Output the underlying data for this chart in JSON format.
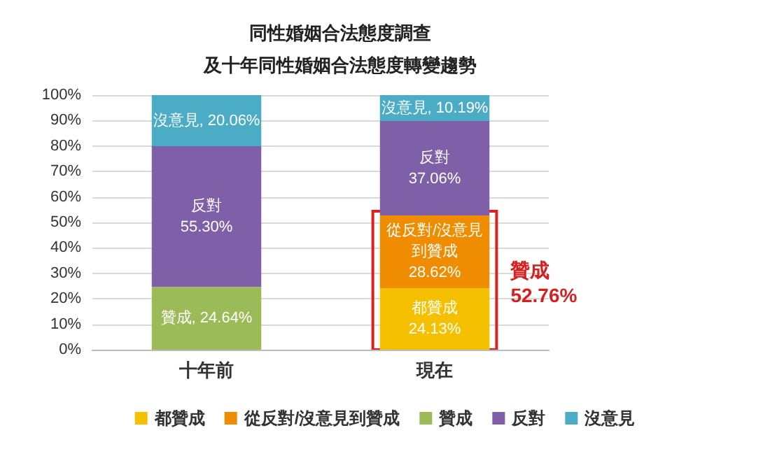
{
  "chart_data": {
    "type": "bar",
    "stacked": true,
    "title": "同性婚姻合法態度調查",
    "subtitle": "及十年同性婚姻合法態度轉變趨勢",
    "categories": [
      "十年前",
      "現在"
    ],
    "series": [
      {
        "name": "都贊成",
        "color": "#f5c000",
        "values": [
          null,
          24.13
        ],
        "value_labels": [
          null,
          "都贊成\n24.13%"
        ]
      },
      {
        "name": "從反對/沒意見到贊成",
        "color": "#f08c00",
        "values": [
          null,
          28.62
        ],
        "value_labels": [
          null,
          "從反對/沒意見到贊成\n28.62%"
        ]
      },
      {
        "name": "贊成",
        "color": "#9bbb59",
        "values": [
          24.64,
          null
        ],
        "value_labels": [
          "贊成, 24.64%",
          null
        ]
      },
      {
        "name": "反對",
        "color": "#7e5fa8",
        "values": [
          55.3,
          37.06
        ],
        "value_labels": [
          "反對\n55.30%",
          "反對\n37.06%"
        ]
      },
      {
        "name": "沒意見",
        "color": "#4bacc6",
        "values": [
          20.06,
          10.19
        ],
        "value_labels": [
          "沒意見, 20.06%",
          "沒意見, 10.19%"
        ]
      }
    ],
    "ylim": [
      0,
      100
    ],
    "yticks": [
      {
        "value": 0,
        "label": "0%"
      },
      {
        "value": 10,
        "label": "10%"
      },
      {
        "value": 20,
        "label": "20%"
      },
      {
        "value": 30,
        "label": "30%"
      },
      {
        "value": 40,
        "label": "40%"
      },
      {
        "value": 50,
        "label": "50%"
      },
      {
        "value": 60,
        "label": "60%"
      },
      {
        "value": 70,
        "label": "70%"
      },
      {
        "value": 80,
        "label": "80%"
      },
      {
        "value": 90,
        "label": "90%"
      },
      {
        "value": 100,
        "label": "100%"
      }
    ],
    "grid": "y",
    "legend": "bottom",
    "annotations": [
      "贊成\n52.76%"
    ]
  }
}
